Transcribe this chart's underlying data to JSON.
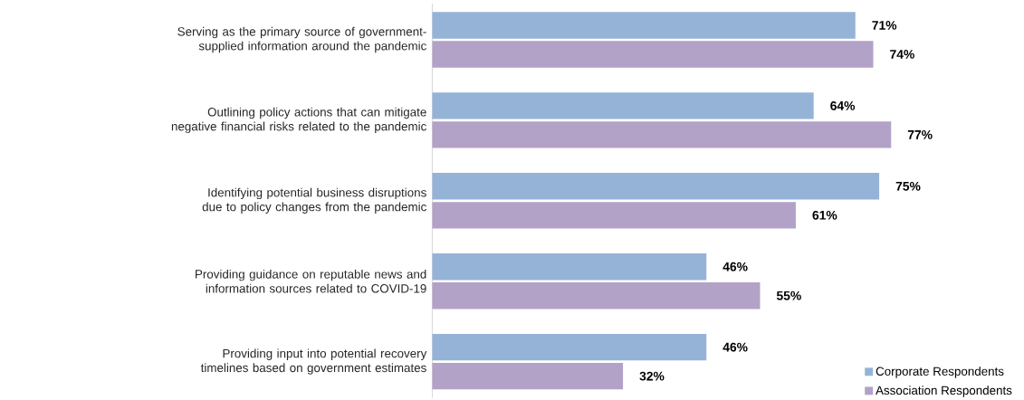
{
  "chart_data": {
    "type": "bar",
    "orientation": "horizontal",
    "categories": [
      "Serving as the primary source of government-supplied information around the pandemic",
      "Outlining policy actions that can mitigate negative financial risks related to the pandemic",
      "Identifying potential business disruptions due to policy changes from the pandemic",
      "Providing guidance on reputable news and information sources related to COVID-19",
      "Providing input into potential recovery timelines based on government estimates"
    ],
    "series": [
      {
        "name": "Corporate Respondents",
        "color": "#95b3d7",
        "values": [
          71,
          64,
          75,
          46,
          46
        ],
        "value_labels": [
          "71%",
          "64%",
          "75%",
          "46%",
          "46%"
        ]
      },
      {
        "name": "Association Respondents",
        "color": "#b3a2c7",
        "values": [
          74,
          77,
          61,
          55,
          32
        ],
        "value_labels": [
          "74%",
          "77%",
          "61%",
          "55%",
          "32%"
        ]
      }
    ],
    "legend": "bottom right"
  }
}
